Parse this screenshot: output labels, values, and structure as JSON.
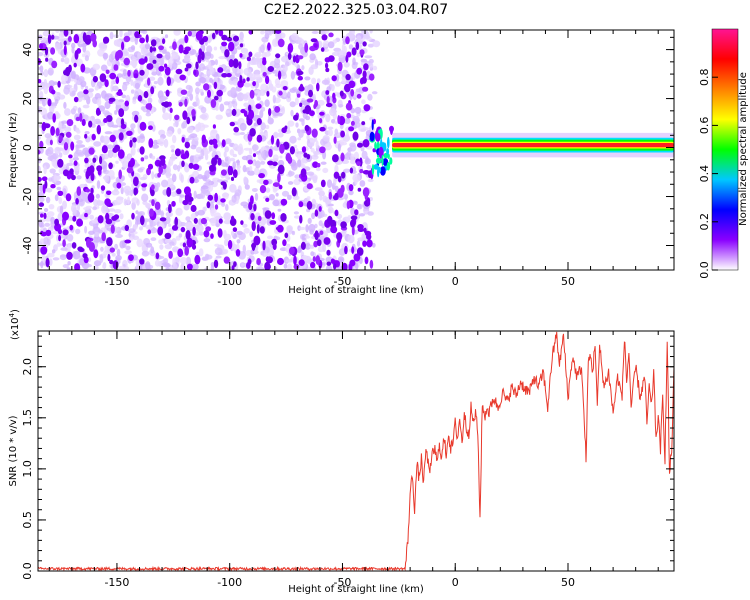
{
  "figure": {
    "title": "C2E2.2022.325.03.04.R07"
  },
  "chart_data": [
    {
      "type": "heatmap",
      "name": "spectrogram",
      "xlabel": "Height of straight line (km)",
      "ylabel": "Frequency (Hz)",
      "xlim": [
        -185,
        97
      ],
      "ylim": [
        -50,
        48
      ],
      "xticks": [
        -150,
        -100,
        -50,
        0,
        50
      ],
      "yticks": [
        -40,
        -20,
        0,
        20,
        40
      ],
      "noise_region_x": [
        -185,
        -37
      ],
      "transition_x": [
        -37,
        -28
      ],
      "signal_band": {
        "x": [
          -28,
          97
        ],
        "center_freq_hz": 1,
        "half_width_hz": 2.5
      },
      "colorbar": {
        "label": "Normalized spectral amplitude",
        "range": [
          0,
          1
        ],
        "ticks": [
          "0.0",
          "0.2",
          "0.4",
          "0.6",
          "0.8"
        ],
        "tick_values": [
          0.0,
          0.2,
          0.4,
          0.6,
          0.8
        ],
        "colors": [
          "#ffffff",
          "#8a00ff",
          "#0000ff",
          "#00c8ff",
          "#00ff00",
          "#ffff00",
          "#ff8000",
          "#ff0000",
          "#ff1493"
        ]
      }
    },
    {
      "type": "line",
      "name": "snr",
      "xlabel": "Height of straight line (km)",
      "ylabel": "SNR (10 * v/v)",
      "y_multiplier": "(x10",
      "y_multiplier_exp": "4",
      "y_multiplier_close": ")",
      "xlim": [
        -185,
        97
      ],
      "ylim": [
        0,
        2.35
      ],
      "xticks": [
        -150,
        -100,
        -50,
        0,
        50
      ],
      "yticks": [
        "0.0",
        "0.5",
        "1.0",
        "1.5",
        "2.0"
      ],
      "ytick_values": [
        0.0,
        0.5,
        1.0,
        1.5,
        2.0
      ],
      "color": "#e8392c",
      "series": [
        {
          "x": [
            -185,
            -100,
            -40,
            -22,
            -21,
            -20,
            -19,
            -18,
            -17,
            -16,
            -15,
            -14,
            -13,
            -12,
            -11,
            -10,
            -9,
            -8,
            -7,
            -6,
            -5,
            -4,
            -3,
            -2,
            -1,
            0,
            1,
            2,
            3,
            4,
            5,
            6,
            7,
            8,
            9,
            10,
            11,
            12,
            13,
            14,
            15,
            17,
            19,
            21,
            23,
            25,
            27,
            29,
            31,
            33,
            35,
            37,
            39,
            41,
            43,
            44,
            45,
            46,
            47,
            48,
            50,
            52,
            54,
            56,
            58,
            59,
            60,
            61,
            62,
            63,
            64,
            66,
            68,
            70,
            72,
            74,
            75,
            76,
            77,
            78,
            80,
            82,
            84,
            85,
            86,
            87,
            88,
            89,
            90,
            91,
            92,
            93,
            94,
            95,
            96,
            97
          ],
          "y": [
            0.02,
            0.02,
            0.02,
            0.06,
            0.3,
            0.75,
            0.95,
            0.6,
            1.05,
            0.9,
            1.1,
            0.85,
            1.2,
            1.05,
            1.0,
            1.15,
            1.2,
            1.05,
            1.25,
            1.1,
            1.3,
            1.15,
            1.35,
            1.2,
            1.25,
            1.45,
            1.3,
            1.5,
            1.25,
            1.55,
            1.4,
            1.35,
            1.6,
            1.45,
            1.55,
            1.35,
            0.5,
            1.65,
            1.5,
            1.6,
            1.55,
            1.7,
            1.6,
            1.75,
            1.65,
            1.8,
            1.72,
            1.85,
            1.78,
            1.75,
            1.9,
            1.8,
            1.95,
            1.6,
            2.1,
            2.2,
            2.35,
            2.0,
            2.15,
            2.3,
            1.7,
            2.1,
            1.9,
            2.0,
            1.1,
            2.05,
            2.1,
            1.95,
            2.25,
            1.6,
            2.2,
            1.8,
            1.95,
            1.55,
            1.9,
            1.7,
            2.3,
            1.85,
            2.15,
            1.6,
            2.0,
            1.7,
            1.9,
            1.45,
            1.8,
            1.6,
            1.95,
            1.3,
            1.5,
            1.2,
            1.7,
            1.1,
            2.25,
            0.95,
            1.2,
            1.95
          ]
        }
      ]
    }
  ]
}
